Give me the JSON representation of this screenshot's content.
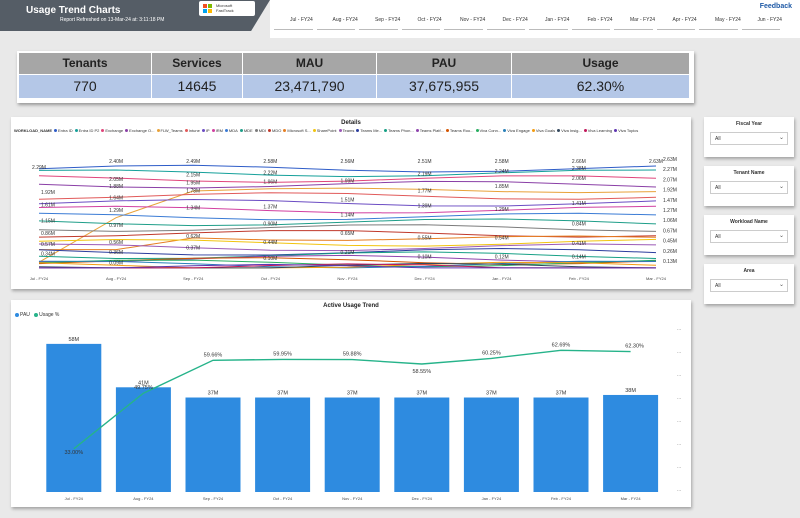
{
  "header": {
    "title": "Usage Trend Charts",
    "refreshed": "Report Refreshed on 13-Mar-24 at: 3:11:18 PM",
    "logo_text_1": "Microsoft",
    "logo_text_2": "FastTrack"
  },
  "months": [
    "Jul - FY24",
    "Aug - FY24",
    "Sep - FY24",
    "Oct - FY24",
    "Nov - FY24",
    "Dec - FY24",
    "Jan - FY24",
    "Feb - FY24",
    "Mar - FY24",
    "Apr - FY24",
    "May - FY24",
    "Jun - FY24"
  ],
  "feedback": "Feedback",
  "kpi": {
    "headers": [
      "Tenants",
      "Services",
      "MAU",
      "PAU",
      "Usage"
    ],
    "values": [
      "770",
      "14645",
      "23,471,790",
      "37,675,955",
      "62.30%"
    ]
  },
  "details": {
    "title": "Details",
    "legend_label": "WORKLOAD_NAME",
    "legend": [
      {
        "name": "Entra ID",
        "color": "#2e5cc8"
      },
      {
        "name": "Entra ID P2",
        "color": "#15a09a"
      },
      {
        "name": "Exchange",
        "color": "#e0457b"
      },
      {
        "name": "Exchange O...",
        "color": "#8a3fa6"
      },
      {
        "name": "FLW_Teams",
        "color": "#e8a23a"
      },
      {
        "name": "Intune",
        "color": "#e15a5a"
      },
      {
        "name": "IP",
        "color": "#6b4cc3"
      },
      {
        "name": "IRM",
        "color": "#d13fa0"
      },
      {
        "name": "MDA",
        "color": "#3a7bd5"
      },
      {
        "name": "MDE",
        "color": "#1f9e89"
      },
      {
        "name": "MDI",
        "color": "#7c7c7c"
      },
      {
        "name": "MDO",
        "color": "#c0392b"
      },
      {
        "name": "Microsoft S...",
        "color": "#e67e22"
      },
      {
        "name": "SharePoint",
        "color": "#f1c40f"
      },
      {
        "name": "Teams",
        "color": "#9b59b6"
      },
      {
        "name": "Teams Me...",
        "color": "#2c3e9e"
      },
      {
        "name": "Teams Phon...",
        "color": "#16a085"
      },
      {
        "name": "Teams Platf...",
        "color": "#8e44ad"
      },
      {
        "name": "Teams Roo...",
        "color": "#d35400"
      },
      {
        "name": "Viva Conn...",
        "color": "#27ae60"
      },
      {
        "name": "Viva Engage",
        "color": "#2980b9"
      },
      {
        "name": "Viva Goals",
        "color": "#f39c12"
      },
      {
        "name": "Viva Insig...",
        "color": "#34495e"
      },
      {
        "name": "Viva Learning",
        "color": "#c2185b"
      },
      {
        "name": "Viva Topics",
        "color": "#5e35b1"
      }
    ],
    "x_labels": [
      "Jul - FY24",
      "Aug - FY24",
      "Sep - FY24",
      "Oct - FY24",
      "Nov - FY24",
      "Dec - FY24",
      "Jan - FY24",
      "Feb - FY24",
      "Mar - FY24"
    ],
    "top_labels": [
      "2.29M",
      "2.40M",
      "2.49M",
      "2.58M",
      "2.56M",
      "2.51M",
      "2.58M",
      "2.66M",
      "2.63M"
    ],
    "end_labels": [
      "2.63M",
      "2.27M",
      "2.07M",
      "1.92M",
      "1.47M",
      "1.27M",
      "1.06M",
      "0.67M",
      "0.45M",
      "0.26M",
      "0.13M"
    ],
    "scatter_labels": [
      {
        "i": 0,
        "t": "1.92M",
        "v": 0.66
      },
      {
        "i": 0,
        "t": "1.61M",
        "v": 0.55
      },
      {
        "i": 0,
        "t": "1.15M",
        "v": 0.41
      },
      {
        "i": 0,
        "t": "0.86M",
        "v": 0.3
      },
      {
        "i": 0,
        "t": "0.57M",
        "v": 0.2
      },
      {
        "i": 0,
        "t": "0.34M",
        "v": 0.12
      },
      {
        "i": 1,
        "t": "2.05M",
        "v": 0.77
      },
      {
        "i": 1,
        "t": "1.88M",
        "v": 0.71
      },
      {
        "i": 1,
        "t": "1.64M",
        "v": 0.61
      },
      {
        "i": 1,
        "t": "1.29M",
        "v": 0.5
      },
      {
        "i": 1,
        "t": "0.97M",
        "v": 0.37
      },
      {
        "i": 1,
        "t": "0.56M",
        "v": 0.22
      },
      {
        "i": 1,
        "t": "0.36M",
        "v": 0.13
      },
      {
        "i": 1,
        "t": "0.09M",
        "v": 0.04
      },
      {
        "i": 2,
        "t": "2.15M",
        "v": 0.81
      },
      {
        "i": 2,
        "t": "1.95M",
        "v": 0.74
      },
      {
        "i": 2,
        "t": "1.78M",
        "v": 0.67
      },
      {
        "i": 2,
        "t": "1.34M",
        "v": 0.52
      },
      {
        "i": 2,
        "t": "0.62M",
        "v": 0.27
      },
      {
        "i": 2,
        "t": "0.37M",
        "v": 0.17
      },
      {
        "i": 3,
        "t": "2.22M",
        "v": 0.83
      },
      {
        "i": 3,
        "t": "1.96M",
        "v": 0.75
      },
      {
        "i": 3,
        "t": "1.37M",
        "v": 0.53
      },
      {
        "i": 3,
        "t": "0.90M",
        "v": 0.38
      },
      {
        "i": 3,
        "t": "0.44M",
        "v": 0.22
      },
      {
        "i": 3,
        "t": "0.10M",
        "v": 0.08
      },
      {
        "i": 4,
        "t": "1.99M",
        "v": 0.76
      },
      {
        "i": 4,
        "t": "1.51M",
        "v": 0.59
      },
      {
        "i": 4,
        "t": "1.14M",
        "v": 0.46
      },
      {
        "i": 4,
        "t": "0.65M",
        "v": 0.3
      },
      {
        "i": 4,
        "t": "0.21M",
        "v": 0.13
      },
      {
        "i": 5,
        "t": "2.19M",
        "v": 0.82
      },
      {
        "i": 5,
        "t": "1.77M",
        "v": 0.67
      },
      {
        "i": 5,
        "t": "1.39M",
        "v": 0.54
      },
      {
        "i": 5,
        "t": "0.55M",
        "v": 0.26
      },
      {
        "i": 5,
        "t": "0.10M",
        "v": 0.09
      },
      {
        "i": 6,
        "t": "2.24M",
        "v": 0.84
      },
      {
        "i": 6,
        "t": "1.85M",
        "v": 0.71
      },
      {
        "i": 6,
        "t": "1.29M",
        "v": 0.51
      },
      {
        "i": 6,
        "t": "0.54M",
        "v": 0.26
      },
      {
        "i": 6,
        "t": "0.12M",
        "v": 0.09
      },
      {
        "i": 7,
        "t": "2.38M",
        "v": 0.87
      },
      {
        "i": 7,
        "t": "2.06M",
        "v": 0.78
      },
      {
        "i": 7,
        "t": "1.41M",
        "v": 0.56
      },
      {
        "i": 7,
        "t": "0.84M",
        "v": 0.38
      },
      {
        "i": 7,
        "t": "0.41M",
        "v": 0.21
      },
      {
        "i": 7,
        "t": "0.14M",
        "v": 0.09
      }
    ]
  },
  "slicers": [
    {
      "title": "Fiscal Year",
      "value": "All"
    },
    {
      "title": "Tenant Name",
      "value": "All"
    },
    {
      "title": "Workload Name",
      "value": "All"
    },
    {
      "title": "Area",
      "value": "All"
    }
  ],
  "chart_data": {
    "type": "bar",
    "title": "Active Usage Trend",
    "categories": [
      "Jul - FY24",
      "Aug - FY24",
      "Sep - FY24",
      "Oct - FY24",
      "Nov - FY24",
      "Dec - FY24",
      "Jan - FY24",
      "Feb - FY24",
      "Mar - FY24"
    ],
    "series": [
      {
        "name": "PAU",
        "type": "bar",
        "color": "#2e8be0",
        "values": [
          58,
          41,
          37,
          37,
          37,
          37,
          37,
          37,
          38
        ],
        "labels": [
          "58M",
          "41M",
          "37M",
          "37M",
          "37M",
          "37M",
          "37M",
          "37M",
          "38M"
        ]
      },
      {
        "name": "Usage %",
        "type": "line",
        "color": "#26b38a",
        "values": [
          33.0,
          49.75,
          59.66,
          59.95,
          59.88,
          58.55,
          60.25,
          62.69,
          62.3
        ],
        "labels": [
          "33.00%",
          "49.75%",
          "59.66%",
          "59.95%",
          "59.88%",
          "58.55%",
          "60.25%",
          "62.69%",
          "62.30%"
        ]
      }
    ],
    "ylim": [
      0,
      65
    ],
    "y2lim": [
      20,
      70
    ],
    "right_ticks": [
      "...",
      "...",
      "...",
      "...",
      "...",
      "...",
      "...",
      "..."
    ],
    "legend_position": "top-left"
  }
}
